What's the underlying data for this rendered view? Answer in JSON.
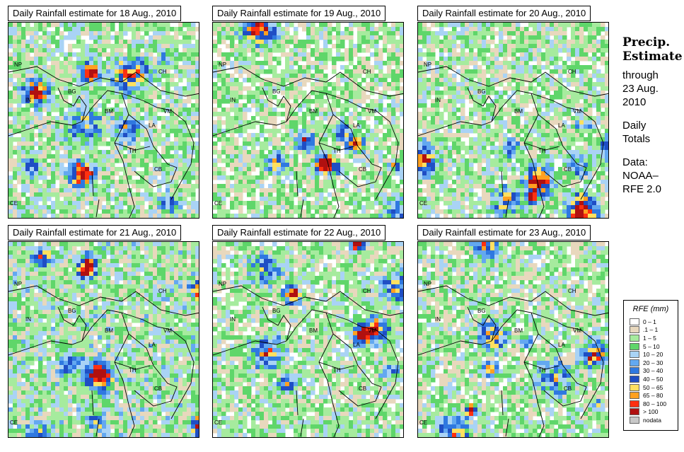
{
  "panels": [
    {
      "title": "Daily Rainfall estimate for  18 Aug., 2010",
      "seed": 18,
      "wet": 0.55
    },
    {
      "title": "Daily Rainfall estimate for  19 Aug., 2010",
      "seed": 19,
      "wet": 0.45
    },
    {
      "title": "Daily Rainfall estimate for  20 Aug., 2010",
      "seed": 20,
      "wet": 0.5
    },
    {
      "title": "Daily Rainfall estimate for  21 Aug., 2010",
      "seed": 21,
      "wet": 0.62
    },
    {
      "title": "Daily Rainfall estimate for  22 Aug., 2010",
      "seed": 22,
      "wet": 0.5
    },
    {
      "title": "Daily Rainfall estimate for  23 Aug., 2010",
      "seed": 23,
      "wet": 0.5
    }
  ],
  "country_labels": [
    "NP",
    "IN",
    "BG",
    "BM",
    "CH",
    "VM",
    "LA",
    "TH",
    "CB",
    "CE"
  ],
  "side": {
    "heading_line1": "Precip.",
    "heading_line2": "Estimate",
    "through": "through",
    "date_line1": "23 Aug.",
    "date_line2": "2010",
    "daily_line1": "Daily",
    "daily_line2": "Totals",
    "data_line1": "Data:",
    "data_line2": "NOAA–",
    "data_line3": "RFE 2.0"
  },
  "legend": {
    "title": "RFE (mm)",
    "items": [
      {
        "label": "0 – 1",
        "color": "#ffffff"
      },
      {
        "label": ".1 – 1",
        "color": "#e8d8bd"
      },
      {
        "label": "1 – 5",
        "color": "#a6eb9e"
      },
      {
        "label": "5 – 10",
        "color": "#5fd66a"
      },
      {
        "label": "10 – 20",
        "color": "#a9d3f5"
      },
      {
        "label": "20 – 30",
        "color": "#63a8f0"
      },
      {
        "label": "30 – 40",
        "color": "#2f78e0"
      },
      {
        "label": "40 – 50",
        "color": "#1f4ec4"
      },
      {
        "label": "50 – 65",
        "color": "#ffe060"
      },
      {
        "label": "65 – 80",
        "color": "#ffa020"
      },
      {
        "label": "80 – 100",
        "color": "#ff3010"
      },
      {
        "label": "> 100",
        "color": "#b01010"
      },
      {
        "label": "nodata",
        "color": "#c8c8c8"
      }
    ]
  }
}
